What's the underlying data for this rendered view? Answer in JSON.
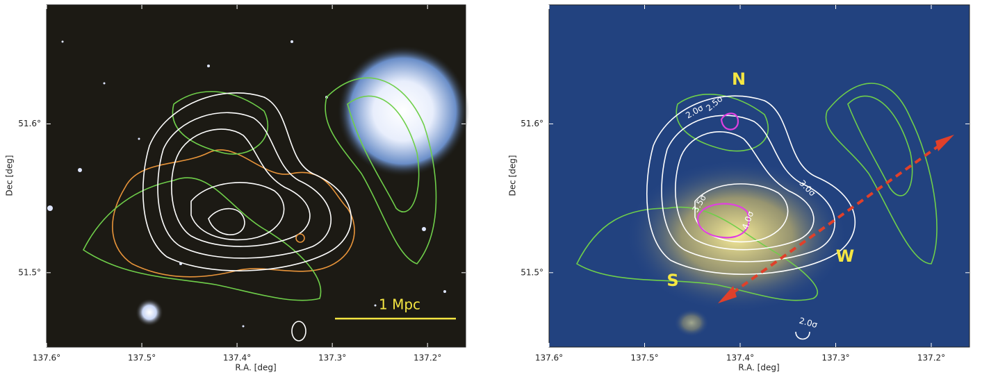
{
  "chart_data": [
    {
      "type": "image",
      "x_label": "R.A. [deg]",
      "y_label": "Dec [deg]",
      "xlim": [
        137.6,
        137.16
      ],
      "ylim": [
        51.45,
        51.68
      ],
      "xticks": [
        {
          "value": 137.6,
          "label": "137.6°"
        },
        {
          "value": 137.5,
          "label": "137.5°"
        },
        {
          "value": 137.4,
          "label": "137.4°"
        },
        {
          "value": 137.3,
          "label": "137.3°"
        },
        {
          "value": 137.2,
          "label": "137.2°"
        }
      ],
      "yticks": [
        {
          "value": 51.5,
          "label": "51.5°"
        },
        {
          "value": 51.6,
          "label": "51.6°"
        }
      ],
      "annotations": [
        "1 Mpc"
      ]
    },
    {
      "type": "image",
      "x_label": "R.A. [deg]",
      "y_label": "Dec [deg]",
      "xlim": [
        137.6,
        137.16
      ],
      "ylim": [
        51.45,
        51.68
      ],
      "xticks": [
        {
          "value": 137.6,
          "label": "137.6°"
        },
        {
          "value": 137.5,
          "label": "137.5°"
        },
        {
          "value": 137.4,
          "label": "137.4°"
        },
        {
          "value": 137.3,
          "label": "137.3°"
        },
        {
          "value": 137.2,
          "label": "137.2°"
        }
      ],
      "yticks": [
        {
          "value": 51.5,
          "label": "51.5°"
        },
        {
          "value": 51.6,
          "label": "51.6°"
        }
      ],
      "annotations": [
        "N",
        "S",
        "W",
        "2.0σ",
        "2.5σ",
        "3.0σ",
        "3.5σ",
        "4.0σ",
        "2.0σ"
      ]
    }
  ]
}
